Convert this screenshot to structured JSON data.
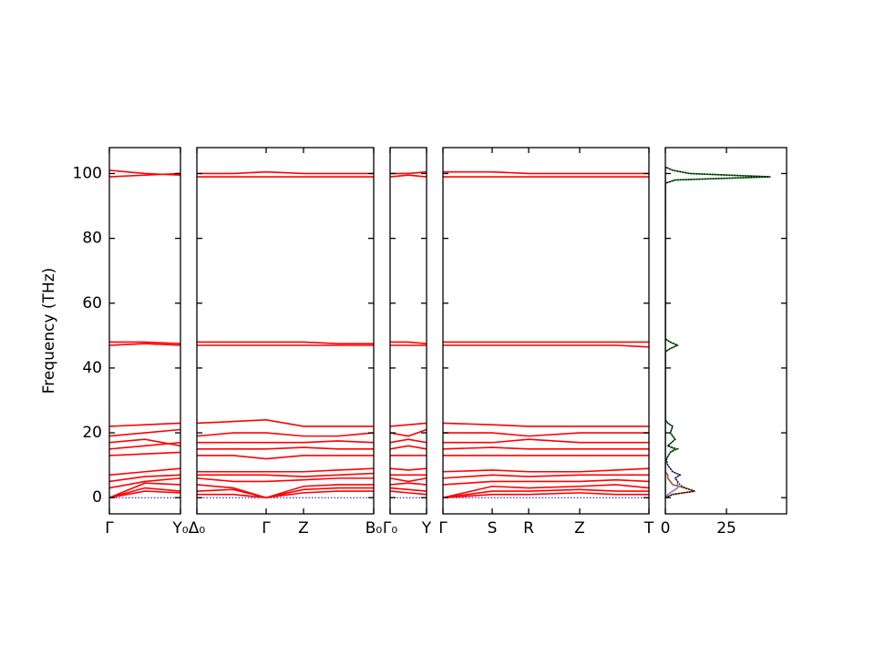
{
  "chart_data": [
    {
      "type": "line",
      "ylabel": "Frequency (THz)",
      "color": "#ff0000",
      "hline": 0,
      "hline_color": "#0000cc",
      "xlim": [
        0,
        78
      ],
      "xticks": [
        {
          "value": 0,
          "label": "Γ"
        },
        {
          "value": 78,
          "label": "Y₀"
        }
      ],
      "ylim": [
        -5,
        108
      ],
      "yticks": [
        0,
        20,
        40,
        60,
        80,
        100
      ],
      "x": [
        0,
        39,
        78
      ],
      "series": [
        {
          "values": [
            0,
            2,
            1.5
          ]
        },
        {
          "values": [
            0,
            3,
            2
          ]
        },
        {
          "values": [
            0,
            4.5,
            4
          ]
        },
        {
          "values": [
            3,
            5,
            6
          ]
        },
        {
          "values": [
            5,
            6.5,
            7
          ]
        },
        {
          "values": [
            7,
            8,
            9
          ]
        },
        {
          "values": [
            13,
            13.5,
            14
          ]
        },
        {
          "values": [
            15,
            16,
            17
          ]
        },
        {
          "values": [
            17,
            18,
            16
          ]
        },
        {
          "values": [
            19,
            20,
            21
          ]
        },
        {
          "values": [
            22,
            22.5,
            23
          ]
        },
        {
          "values": [
            47,
            47.5,
            47
          ]
        },
        {
          "values": [
            48,
            48,
            47.5
          ]
        },
        {
          "values": [
            99,
            99.5,
            100
          ]
        },
        {
          "values": [
            101,
            100,
            99.5
          ]
        }
      ]
    },
    {
      "type": "line",
      "color": "#ff0000",
      "hline": 0,
      "hline_color": "#0000cc",
      "xlim": [
        0,
        194
      ],
      "xticks": [
        {
          "value": 0,
          "label": "Δ₀"
        },
        {
          "value": 76,
          "label": "Γ"
        },
        {
          "value": 117,
          "label": "Z"
        },
        {
          "value": 194,
          "label": "B₀"
        }
      ],
      "ylim": [
        -5,
        108
      ],
      "yticks": [
        0,
        20,
        40,
        60,
        80,
        100
      ],
      "x": [
        0,
        40,
        76,
        117,
        155,
        194
      ],
      "series": [
        {
          "values": [
            1,
            1,
            0,
            1.5,
            2,
            2
          ]
        },
        {
          "values": [
            2,
            2.5,
            0,
            2.5,
            3,
            3
          ]
        },
        {
          "values": [
            4,
            3,
            0,
            3.5,
            4,
            4
          ]
        },
        {
          "values": [
            6,
            5,
            5,
            5.5,
            6,
            6
          ]
        },
        {
          "values": [
            7,
            7,
            7,
            6.5,
            7,
            7.5
          ]
        },
        {
          "values": [
            8,
            8,
            8,
            8,
            8.5,
            9
          ]
        },
        {
          "values": [
            13,
            13,
            12,
            13,
            13,
            13
          ]
        },
        {
          "values": [
            15,
            15,
            15,
            15.5,
            15,
            15
          ]
        },
        {
          "values": [
            17,
            17,
            17,
            17,
            17.5,
            17
          ]
        },
        {
          "values": [
            19,
            20,
            20,
            19,
            19,
            20
          ]
        },
        {
          "values": [
            23,
            23.5,
            24,
            22,
            22,
            22
          ]
        },
        {
          "values": [
            47,
            47,
            47,
            47,
            47,
            47
          ]
        },
        {
          "values": [
            48,
            48,
            48,
            48,
            47.5,
            47.5
          ]
        },
        {
          "values": [
            99,
            99,
            99,
            99,
            99,
            99
          ]
        },
        {
          "values": [
            100,
            100,
            100.5,
            100,
            100,
            100
          ]
        }
      ]
    },
    {
      "type": "line",
      "color": "#ff0000",
      "hline": 0,
      "hline_color": "#0000cc",
      "xlim": [
        0,
        40
      ],
      "xticks": [
        {
          "value": 0,
          "label": "Γ₀"
        },
        {
          "value": 40,
          "label": "Y"
        }
      ],
      "ylim": [
        -5,
        108
      ],
      "yticks": [
        0,
        20,
        40,
        60,
        80,
        100
      ],
      "x": [
        0,
        20,
        40
      ],
      "series": [
        {
          "values": [
            2,
            1.5,
            1
          ]
        },
        {
          "values": [
            3,
            2.5,
            2
          ]
        },
        {
          "values": [
            4,
            4.5,
            4
          ]
        },
        {
          "values": [
            6,
            5,
            6
          ]
        },
        {
          "values": [
            7,
            7,
            7
          ]
        },
        {
          "values": [
            9,
            8.5,
            9
          ]
        },
        {
          "values": [
            13,
            13,
            13
          ]
        },
        {
          "values": [
            15,
            16,
            15
          ]
        },
        {
          "values": [
            17,
            18,
            17
          ]
        },
        {
          "values": [
            20,
            19,
            21
          ]
        },
        {
          "values": [
            22,
            22.5,
            23
          ]
        },
        {
          "values": [
            47,
            47,
            47
          ]
        },
        {
          "values": [
            48,
            48,
            47.5
          ]
        },
        {
          "values": [
            99,
            99.5,
            99
          ]
        },
        {
          "values": [
            100,
            100,
            100.5
          ]
        }
      ]
    },
    {
      "type": "line",
      "color": "#ff0000",
      "hline": 0,
      "hline_color": "#0000cc",
      "xlim": [
        0,
        226
      ],
      "xticks": [
        {
          "value": 0,
          "label": "Γ"
        },
        {
          "value": 54,
          "label": "S"
        },
        {
          "value": 94,
          "label": "R"
        },
        {
          "value": 150,
          "label": "Z"
        },
        {
          "value": 226,
          "label": "T"
        }
      ],
      "ylim": [
        -5,
        108
      ],
      "yticks": [
        0,
        20,
        40,
        60,
        80,
        100
      ],
      "x": [
        0,
        54,
        94,
        150,
        190,
        226
      ],
      "series": [
        {
          "values": [
            0,
            1,
            1,
            1.5,
            1,
            1
          ]
        },
        {
          "values": [
            0,
            2,
            2,
            2.5,
            2,
            2
          ]
        },
        {
          "values": [
            0,
            3.5,
            3,
            3.5,
            4,
            3
          ]
        },
        {
          "values": [
            4,
            5,
            5,
            5,
            5.5,
            5
          ]
        },
        {
          "values": [
            6,
            7,
            6.5,
            7,
            7,
            7
          ]
        },
        {
          "values": [
            8,
            8.5,
            8,
            8,
            8.5,
            9
          ]
        },
        {
          "values": [
            13,
            13,
            13,
            13,
            13,
            13
          ]
        },
        {
          "values": [
            15,
            15.5,
            15,
            15,
            15,
            15
          ]
        },
        {
          "values": [
            17,
            17,
            18,
            17,
            17,
            17
          ]
        },
        {
          "values": [
            20,
            20,
            19,
            20,
            20,
            20
          ]
        },
        {
          "values": [
            23,
            22.5,
            22,
            22,
            22,
            22
          ]
        },
        {
          "values": [
            47,
            47,
            47,
            47,
            47,
            46.5
          ]
        },
        {
          "values": [
            48,
            48,
            48,
            48,
            48,
            48
          ]
        },
        {
          "values": [
            99,
            99,
            99,
            99,
            99,
            99
          ]
        },
        {
          "values": [
            100.5,
            100.5,
            100,
            100,
            100,
            100
          ]
        }
      ]
    },
    {
      "type": "dos",
      "xlim": [
        0,
        49.6
      ],
      "xticks": [
        0,
        25
      ],
      "ylim": [
        -5,
        108
      ],
      "yticks": [
        0,
        20,
        40,
        60,
        80,
        100
      ],
      "y": [
        0,
        1,
        2,
        3,
        4,
        5,
        6,
        7,
        8,
        9,
        10,
        12,
        14,
        15,
        16,
        18,
        20,
        22,
        23,
        24,
        45,
        46,
        47,
        48,
        49,
        97,
        98,
        99,
        100,
        101,
        102
      ],
      "series": [
        {
          "color": "#a0522d",
          "linestyle": "solid",
          "values": [
            0,
            3,
            12,
            8,
            3,
            2,
            1,
            1,
            0,
            0,
            0,
            0,
            0,
            0,
            0,
            0,
            0,
            0,
            0,
            0,
            0,
            0,
            0,
            0,
            0,
            0,
            0,
            0,
            0,
            0,
            0
          ]
        },
        {
          "color": "#9370db",
          "linestyle": "solid",
          "values": [
            0,
            1,
            3,
            5,
            5,
            5,
            4,
            6,
            3,
            2,
            1,
            0,
            0,
            0,
            0,
            0,
            0,
            0,
            0,
            0,
            0,
            0,
            0,
            0,
            0,
            0,
            0,
            0,
            0,
            0,
            0
          ]
        },
        {
          "color": "#228b22",
          "linestyle": "solid",
          "values": [
            0,
            0,
            0,
            0,
            0,
            0,
            0,
            0,
            0,
            0,
            0,
            0.5,
            2,
            4,
            1,
            4,
            2,
            3,
            1,
            0,
            0,
            2,
            5,
            2,
            0,
            0,
            4,
            43,
            10,
            3,
            0
          ]
        },
        {
          "color": "#000000",
          "linestyle": "dotted",
          "values": [
            0,
            3,
            12,
            8,
            6,
            5,
            4,
            6,
            3,
            2,
            1,
            0.5,
            2,
            5,
            1,
            4,
            2,
            3,
            1,
            0,
            0,
            2,
            5,
            2,
            0,
            0,
            4,
            43,
            10,
            3,
            0
          ]
        }
      ]
    }
  ]
}
